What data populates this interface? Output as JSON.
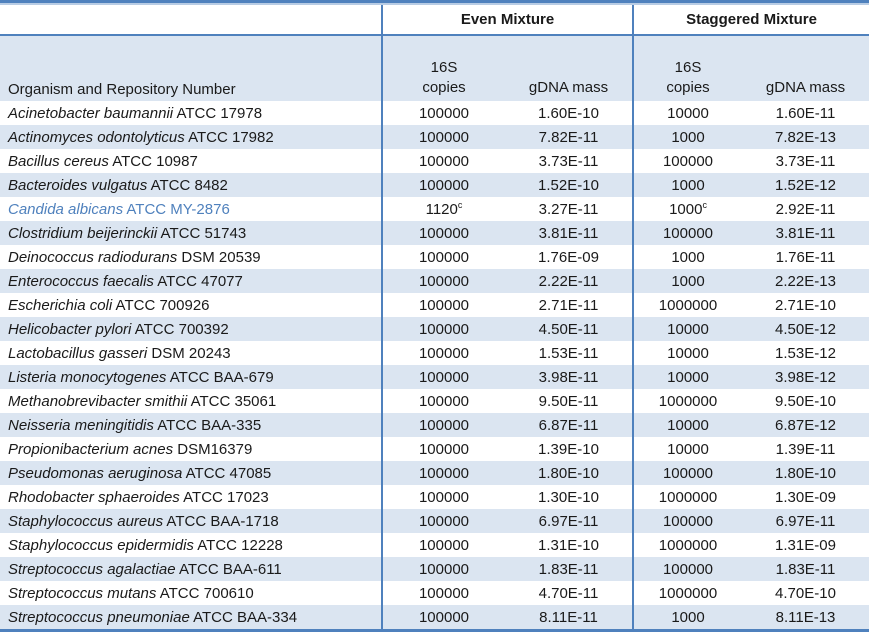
{
  "colors": {
    "accent_border": "#4f81bd",
    "band_fill": "#dbe5f1",
    "light_rule": "#b8cce4",
    "highlight_row_text": "#4f81bd",
    "body_text": "#1a1a1a"
  },
  "table": {
    "header": {
      "organism_label": "Organism and Repository Number",
      "groups": [
        {
          "label": "Even Mixture",
          "copies_line1": "16S",
          "copies_line2": "copies",
          "mass_label": "gDNA mass"
        },
        {
          "label": "Staggered Mixture",
          "copies_line1": "16S",
          "copies_line2": "copies",
          "mass_label": "gDNA mass"
        }
      ]
    },
    "rows": [
      {
        "organism": "Acinetobacter baumannii",
        "repo": "ATCC 17978",
        "even_copies": "100000",
        "even_mass": "1.60E-10",
        "stag_copies": "10000",
        "stag_mass": "1.60E-11"
      },
      {
        "organism": "Actinomyces odontolyticus",
        "repo": "ATCC 17982",
        "even_copies": "100000",
        "even_mass": "7.82E-11",
        "stag_copies": "1000",
        "stag_mass": "7.82E-13"
      },
      {
        "organism": "Bacillus cereus",
        "repo": "ATCC 10987",
        "even_copies": "100000",
        "even_mass": "3.73E-11",
        "stag_copies": "100000",
        "stag_mass": "3.73E-11"
      },
      {
        "organism": "Bacteroides vulgatus",
        "repo": "ATCC 8482",
        "even_copies": "100000",
        "even_mass": "1.52E-10",
        "stag_copies": "1000",
        "stag_mass": "1.52E-12"
      },
      {
        "organism": "Candida albicans",
        "repo": "ATCC MY-2876",
        "even_copies": "1120",
        "even_copies_sup": "c",
        "even_mass": "3.27E-11",
        "stag_copies": "1000",
        "stag_copies_sup": "c",
        "stag_mass": "2.92E-11",
        "highlight": true
      },
      {
        "organism": "Clostridium beijerinckii",
        "repo": "ATCC 51743",
        "even_copies": "100000",
        "even_mass": "3.81E-11",
        "stag_copies": "100000",
        "stag_mass": "3.81E-11"
      },
      {
        "organism": "Deinococcus radiodurans",
        "repo": "DSM 20539",
        "even_copies": "100000",
        "even_mass": "1.76E-09",
        "stag_copies": "1000",
        "stag_mass": "1.76E-11"
      },
      {
        "organism": "Enterococcus faecalis",
        "repo": "ATCC 47077",
        "even_copies": "100000",
        "even_mass": "2.22E-11",
        "stag_copies": "1000",
        "stag_mass": "2.22E-13"
      },
      {
        "organism": "Escherichia coli",
        "repo": "ATCC 700926",
        "even_copies": "100000",
        "even_mass": "2.71E-11",
        "stag_copies": "1000000",
        "stag_mass": "2.71E-10"
      },
      {
        "organism": "Helicobacter pylori",
        "repo": "ATCC 700392",
        "even_copies": "100000",
        "even_mass": "4.50E-11",
        "stag_copies": "10000",
        "stag_mass": "4.50E-12"
      },
      {
        "organism": "Lactobacillus gasseri",
        "repo": "DSM 20243",
        "even_copies": "100000",
        "even_mass": "1.53E-11",
        "stag_copies": "10000",
        "stag_mass": "1.53E-12"
      },
      {
        "organism": "Listeria monocytogenes",
        "repo": "ATCC BAA-679",
        "even_copies": "100000",
        "even_mass": "3.98E-11",
        "stag_copies": "10000",
        "stag_mass": "3.98E-12"
      },
      {
        "organism": "Methanobrevibacter smithii",
        "repo": "ATCC 35061",
        "even_copies": "100000",
        "even_mass": "9.50E-11",
        "stag_copies": "1000000",
        "stag_mass": "9.50E-10"
      },
      {
        "organism": "Neisseria meningitidis",
        "repo": "ATCC BAA-335",
        "even_copies": "100000",
        "even_mass": "6.87E-11",
        "stag_copies": "10000",
        "stag_mass": "6.87E-12"
      },
      {
        "organism": "Propionibacterium acnes",
        "repo": "DSM16379",
        "even_copies": "100000",
        "even_mass": "1.39E-10",
        "stag_copies": "10000",
        "stag_mass": "1.39E-11"
      },
      {
        "organism": "Pseudomonas aeruginosa",
        "repo": "ATCC 47085",
        "even_copies": "100000",
        "even_mass": "1.80E-10",
        "stag_copies": "100000",
        "stag_mass": "1.80E-10"
      },
      {
        "organism": "Rhodobacter sphaeroides",
        "repo": "ATCC 17023",
        "even_copies": "100000",
        "even_mass": "1.30E-10",
        "stag_copies": "1000000",
        "stag_mass": "1.30E-09"
      },
      {
        "organism": "Staphylococcus aureus",
        "repo": "ATCC BAA-1718",
        "even_copies": "100000",
        "even_mass": "6.97E-11",
        "stag_copies": "100000",
        "stag_mass": "6.97E-11"
      },
      {
        "organism": "Staphylococcus epidermidis",
        "repo": "ATCC 12228",
        "even_copies": "100000",
        "even_mass": "1.31E-10",
        "stag_copies": "1000000",
        "stag_mass": "1.31E-09"
      },
      {
        "organism": "Streptococcus agalactiae",
        "repo": "ATCC BAA-611",
        "even_copies": "100000",
        "even_mass": "1.83E-11",
        "stag_copies": "100000",
        "stag_mass": "1.83E-11"
      },
      {
        "organism": "Streptococcus mutans",
        "repo": "ATCC 700610",
        "even_copies": "100000",
        "even_mass": "4.70E-11",
        "stag_copies": "1000000",
        "stag_mass": "4.70E-10"
      },
      {
        "organism": "Streptococcus pneumoniae",
        "repo": "ATCC BAA-334",
        "even_copies": "100000",
        "even_mass": "8.11E-11",
        "stag_copies": "1000",
        "stag_mass": "8.11E-13"
      }
    ]
  }
}
